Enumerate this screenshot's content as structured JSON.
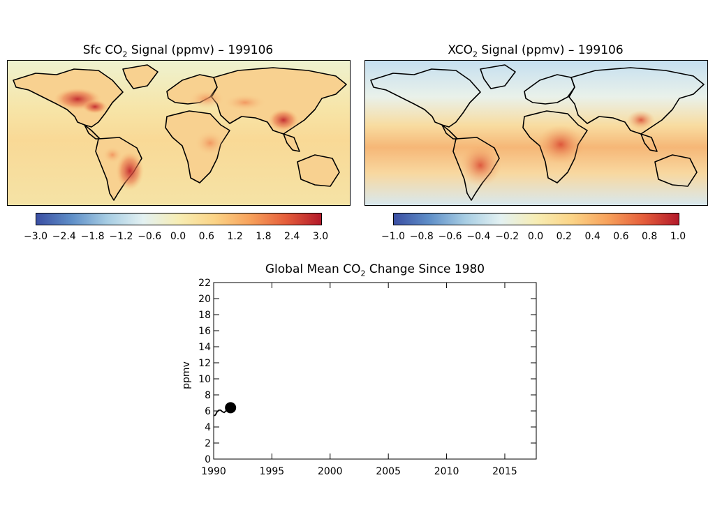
{
  "panels": {
    "left": {
      "title_prefix": "Sfc CO",
      "title_sub": "2",
      "title_suffix": " Signal (ppmv) – 199106",
      "colorbar_ticks": [
        "−3.0",
        "−2.4",
        "−1.8",
        "−1.2",
        "−0.6",
        "0.0",
        "0.6",
        "1.2",
        "1.8",
        "2.4",
        "3.0"
      ],
      "colorbar_range": [
        -3.0,
        3.0
      ]
    },
    "right": {
      "title_prefix": "XCO",
      "title_sub": "2",
      "title_suffix": " Signal (ppmv) – 199106",
      "colorbar_ticks": [
        "−1.0",
        "−0.8",
        "−0.6",
        "−0.4",
        "−0.2",
        "0.0",
        "0.2",
        "0.4",
        "0.6",
        "0.8",
        "1.0"
      ],
      "colorbar_range": [
        -1.0,
        1.0
      ]
    }
  },
  "colormap": [
    "#3b4fa3",
    "#5f8fc8",
    "#a7cde3",
    "#e3f1f2",
    "#f7edb4",
    "#fbd487",
    "#f7a25c",
    "#e55e3b",
    "#b3192a"
  ],
  "chart_data": {
    "type": "line",
    "title_prefix": "Global Mean CO",
    "title_sub": "2",
    "title_suffix": " Change Since 1980",
    "ylabel": "ppmv",
    "xlabel": "",
    "xlim": [
      1990,
      2017.7
    ],
    "ylim": [
      0,
      22
    ],
    "xticks": [
      1990,
      1995,
      2000,
      2005,
      2010,
      2015
    ],
    "yticks": [
      0,
      2,
      4,
      6,
      8,
      10,
      12,
      14,
      16,
      18,
      20,
      22
    ],
    "series": [
      {
        "x": [
          1990.0,
          1990.15,
          1990.3,
          1990.45,
          1990.6,
          1990.75,
          1990.9,
          1991.05,
          1991.2,
          1991.35,
          1991.45
        ],
        "y": [
          5.4,
          5.5,
          5.9,
          6.1,
          6.1,
          5.9,
          5.8,
          6.0,
          6.3,
          6.4,
          6.4
        ]
      }
    ],
    "current_point": {
      "x": 1991.45,
      "y": 6.4
    },
    "grid": false
  }
}
